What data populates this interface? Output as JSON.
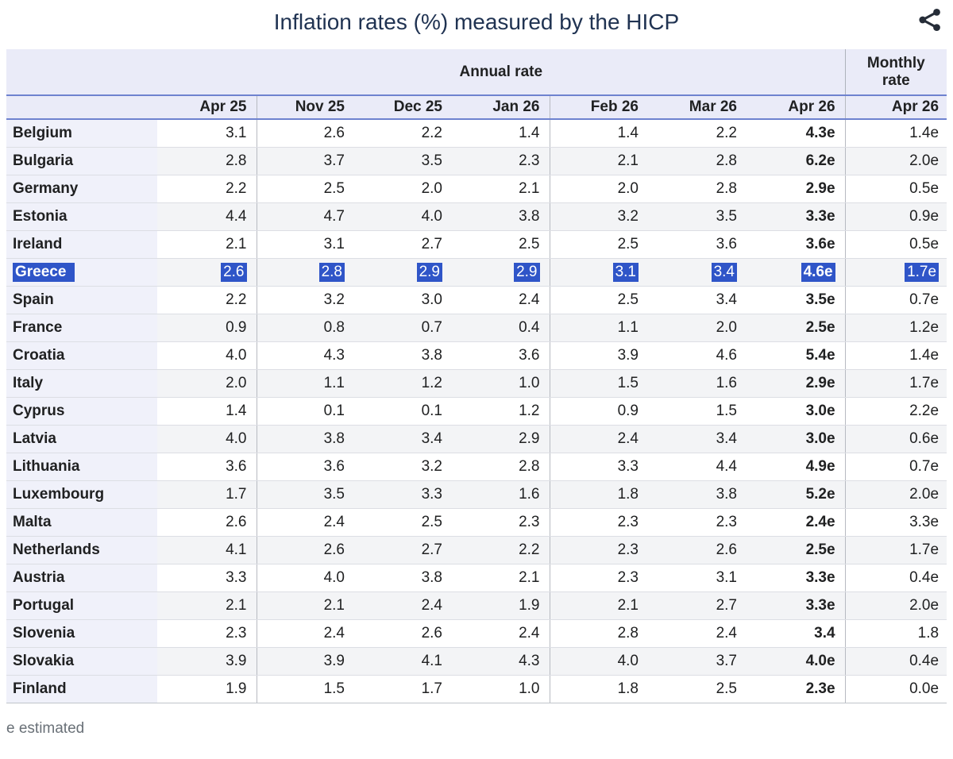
{
  "header": {
    "title": "Inflation rates (%) measured by the HICP",
    "share_icon": "share-icon"
  },
  "chart_data": {
    "type": "table",
    "title": "Inflation rates (%) measured by the HICP",
    "unit": "%",
    "column_groups": {
      "annual": "Annual rate",
      "monthly": "Monthly rate"
    },
    "annual_columns": [
      "Apr 25",
      "Nov 25",
      "Dec 25",
      "Jan 26",
      "Feb 26",
      "Mar 26",
      "Apr 26"
    ],
    "monthly_column": "Apr 26",
    "highlighted_row": "Greece",
    "rows": [
      {
        "country": "Belgium",
        "annual": [
          "3.1",
          "2.6",
          "2.2",
          "1.4",
          "1.4",
          "2.2",
          "4.3e"
        ],
        "monthly": "1.4e",
        "highlighted": false
      },
      {
        "country": "Bulgaria",
        "annual": [
          "2.8",
          "3.7",
          "3.5",
          "2.3",
          "2.1",
          "2.8",
          "6.2e"
        ],
        "monthly": "2.0e",
        "highlighted": false
      },
      {
        "country": "Germany",
        "annual": [
          "2.2",
          "2.5",
          "2.0",
          "2.1",
          "2.0",
          "2.8",
          "2.9e"
        ],
        "monthly": "0.5e",
        "highlighted": false
      },
      {
        "country": "Estonia",
        "annual": [
          "4.4",
          "4.7",
          "4.0",
          "3.8",
          "3.2",
          "3.5",
          "3.3e"
        ],
        "monthly": "0.9e",
        "highlighted": false
      },
      {
        "country": "Ireland",
        "annual": [
          "2.1",
          "3.1",
          "2.7",
          "2.5",
          "2.5",
          "3.6",
          "3.6e"
        ],
        "monthly": "0.5e",
        "highlighted": false
      },
      {
        "country": "Greece",
        "annual": [
          "2.6",
          "2.8",
          "2.9",
          "2.9",
          "3.1",
          "3.4",
          "4.6e"
        ],
        "monthly": "1.7e",
        "highlighted": true
      },
      {
        "country": "Spain",
        "annual": [
          "2.2",
          "3.2",
          "3.0",
          "2.4",
          "2.5",
          "3.4",
          "3.5e"
        ],
        "monthly": "0.7e",
        "highlighted": false
      },
      {
        "country": "France",
        "annual": [
          "0.9",
          "0.8",
          "0.7",
          "0.4",
          "1.1",
          "2.0",
          "2.5e"
        ],
        "monthly": "1.2e",
        "highlighted": false
      },
      {
        "country": "Croatia",
        "annual": [
          "4.0",
          "4.3",
          "3.8",
          "3.6",
          "3.9",
          "4.6",
          "5.4e"
        ],
        "monthly": "1.4e",
        "highlighted": false
      },
      {
        "country": "Italy",
        "annual": [
          "2.0",
          "1.1",
          "1.2",
          "1.0",
          "1.5",
          "1.6",
          "2.9e"
        ],
        "monthly": "1.7e",
        "highlighted": false
      },
      {
        "country": "Cyprus",
        "annual": [
          "1.4",
          "0.1",
          "0.1",
          "1.2",
          "0.9",
          "1.5",
          "3.0e"
        ],
        "monthly": "2.2e",
        "highlighted": false
      },
      {
        "country": "Latvia",
        "annual": [
          "4.0",
          "3.8",
          "3.4",
          "2.9",
          "2.4",
          "3.4",
          "3.0e"
        ],
        "monthly": "0.6e",
        "highlighted": false
      },
      {
        "country": "Lithuania",
        "annual": [
          "3.6",
          "3.6",
          "3.2",
          "2.8",
          "3.3",
          "4.4",
          "4.9e"
        ],
        "monthly": "0.7e",
        "highlighted": false
      },
      {
        "country": "Luxembourg",
        "annual": [
          "1.7",
          "3.5",
          "3.3",
          "1.6",
          "1.8",
          "3.8",
          "5.2e"
        ],
        "monthly": "2.0e",
        "highlighted": false
      },
      {
        "country": "Malta",
        "annual": [
          "2.6",
          "2.4",
          "2.5",
          "2.3",
          "2.3",
          "2.3",
          "2.4e"
        ],
        "monthly": "3.3e",
        "highlighted": false
      },
      {
        "country": "Netherlands",
        "annual": [
          "4.1",
          "2.6",
          "2.7",
          "2.2",
          "2.3",
          "2.6",
          "2.5e"
        ],
        "monthly": "1.7e",
        "highlighted": false
      },
      {
        "country": "Austria",
        "annual": [
          "3.3",
          "4.0",
          "3.8",
          "2.1",
          "2.3",
          "3.1",
          "3.3e"
        ],
        "monthly": "0.4e",
        "highlighted": false
      },
      {
        "country": "Portugal",
        "annual": [
          "2.1",
          "2.1",
          "2.4",
          "1.9",
          "2.1",
          "2.7",
          "3.3e"
        ],
        "monthly": "2.0e",
        "highlighted": false
      },
      {
        "country": "Slovenia",
        "annual": [
          "2.3",
          "2.4",
          "2.6",
          "2.4",
          "2.8",
          "2.4",
          "3.4"
        ],
        "monthly": "1.8",
        "highlighted": false
      },
      {
        "country": "Slovakia",
        "annual": [
          "3.9",
          "3.9",
          "4.1",
          "4.3",
          "4.0",
          "3.7",
          "4.0e"
        ],
        "monthly": "0.4e",
        "highlighted": false
      },
      {
        "country": "Finland",
        "annual": [
          "1.9",
          "1.5",
          "1.7",
          "1.0",
          "1.8",
          "2.5",
          "2.3e"
        ],
        "monthly": "0.0e",
        "highlighted": false
      }
    ],
    "footnote": "e estimated",
    "layout": {
      "estimated_suffix": "e",
      "bold_column": "Apr 26 (annual)",
      "grid": "row separators + group separators after Apr 25, Jan 26, Apr 26"
    }
  },
  "colors": {
    "highlight_blue": "#2f55c8",
    "header_border_blue": "#6e82cf",
    "header_background": "#eaebf8",
    "country_column_background": "#f0f1fa",
    "alt_row_background": "#f3f4f6",
    "title_color": "#203352",
    "share_icon_color": "#262d38"
  }
}
